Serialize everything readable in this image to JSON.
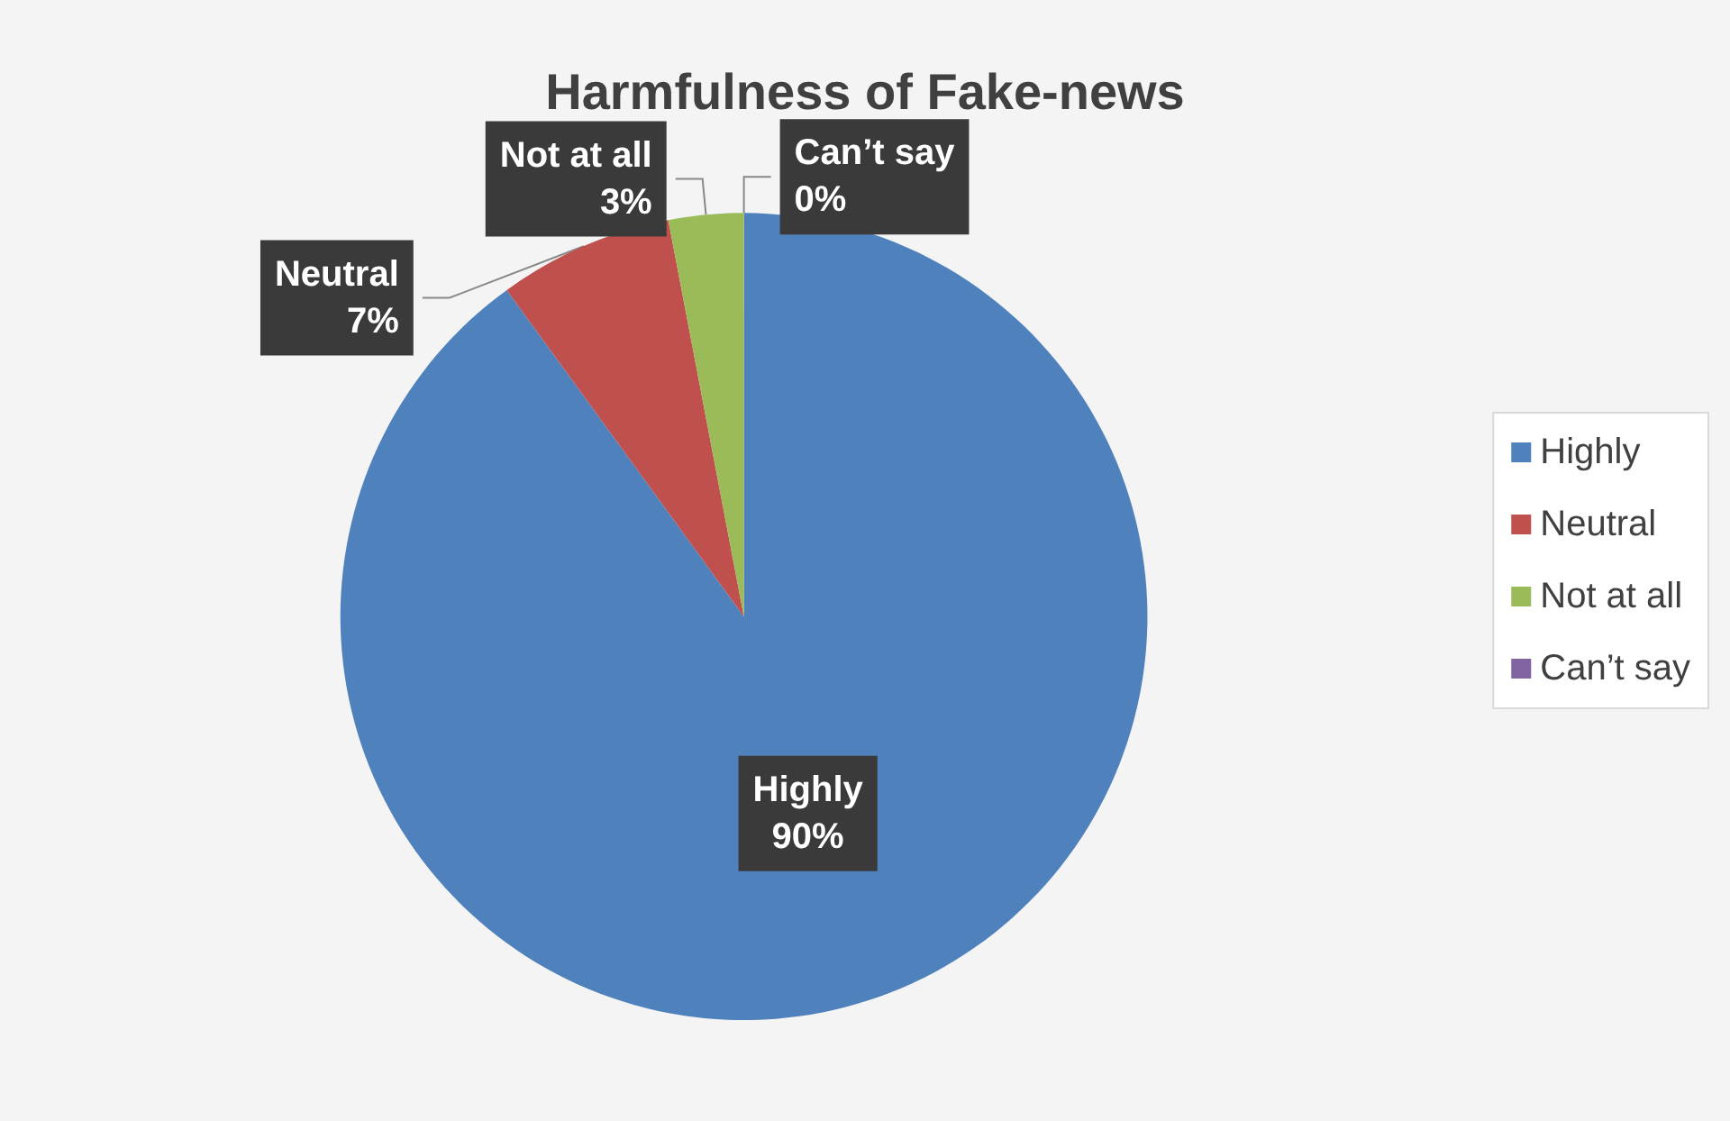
{
  "chart_data": {
    "type": "pie",
    "title": "Harmfulness of Fake-news",
    "categories": [
      "Highly",
      "Neutral",
      "Not at all",
      "Can’t say"
    ],
    "values": [
      90,
      7,
      3,
      0
    ],
    "colors": [
      "#4f81bd",
      "#c0504d",
      "#9bbb59",
      "#8064a2"
    ],
    "value_labels": [
      "90%",
      "7%",
      "3%",
      "0%"
    ],
    "legend": "right"
  }
}
